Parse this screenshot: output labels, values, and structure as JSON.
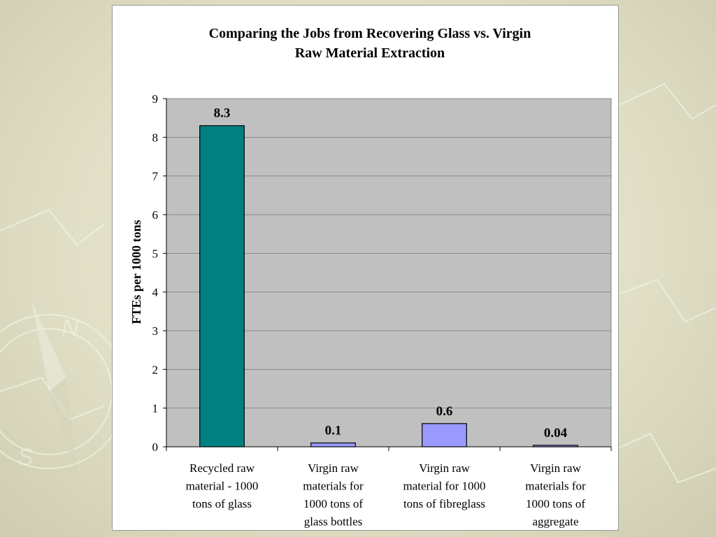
{
  "slide": {
    "background_color": "#e3e1c9"
  },
  "chart_data": {
    "type": "bar",
    "title": "Comparing the Jobs from Recovering Glass vs. Virgin Raw Material Extraction",
    "title_lines": [
      "Comparing the Jobs from Recovering Glass vs. Virgin",
      "Raw Material Extraction"
    ],
    "xlabel": "",
    "ylabel": "FTEs per 1000 tons",
    "ylim": [
      0,
      9
    ],
    "yticks": [
      0,
      1,
      2,
      3,
      4,
      5,
      6,
      7,
      8,
      9
    ],
    "grid": true,
    "legend": "none",
    "plot_background": "#c0c0c0",
    "categories": [
      "Recycled raw material - 1000 tons of glass",
      "Virgin raw materials for 1000 tons of glass bottles",
      "Virgin raw material for 1000 tons of fibreglass",
      "Virgin raw materials for 1000 tons of aggregate"
    ],
    "category_lines": [
      [
        "Recycled raw",
        "material - 1000",
        "tons of glass"
      ],
      [
        "Virgin raw",
        "materials for",
        "1000 tons of",
        "glass bottles"
      ],
      [
        "Virgin raw",
        "material for 1000",
        "tons of fibreglass"
      ],
      [
        "Virgin raw",
        "materials for",
        "1000 tons of",
        "aggregate"
      ]
    ],
    "values": [
      8.3,
      0.1,
      0.6,
      0.04
    ],
    "value_labels": [
      "8.3",
      "0.1",
      "0.6",
      "0.04"
    ],
    "bar_colors": [
      "#008080",
      "#9999ff",
      "#9999ff",
      "#9999ff"
    ]
  }
}
